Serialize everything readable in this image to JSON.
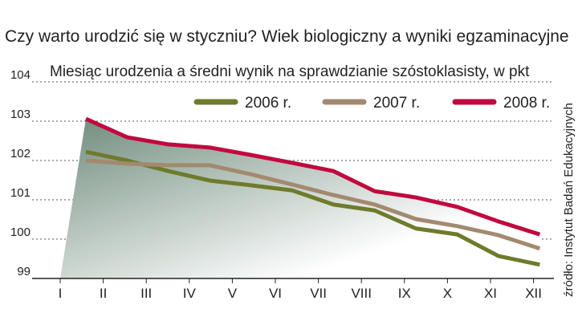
{
  "chart_data": {
    "type": "line",
    "title": "Czy warto urodzić się w styczniu? Wiek biologiczny a wyniki egzaminacyjne",
    "subtitle": "Miesiąc urodzenia a średni wynik na sprawdzianie szóstoklasisty, w pkt",
    "source": "źródło: Instytut Badań Edukacyjnych",
    "categories": [
      "I",
      "II",
      "III",
      "IV",
      "V",
      "VI",
      "VII",
      "VIII",
      "IX",
      "X",
      "XI",
      "XII"
    ],
    "series": [
      {
        "name": "2006 r.",
        "color": "#6e7b2b",
        "values": [
          102.22,
          102.0,
          101.73,
          101.49,
          101.37,
          101.24,
          100.88,
          100.73,
          100.27,
          100.12,
          99.57,
          99.35
        ]
      },
      {
        "name": "2007 r.",
        "color": "#a3896f",
        "values": [
          102.0,
          101.92,
          101.88,
          101.88,
          101.65,
          101.39,
          101.12,
          100.88,
          100.51,
          100.33,
          100.1,
          99.76
        ]
      },
      {
        "name": "2008 r.",
        "color": "#c1093f",
        "values": [
          103.06,
          102.59,
          102.41,
          102.33,
          102.14,
          101.94,
          101.73,
          101.22,
          101.06,
          100.82,
          100.45,
          100.12
        ]
      }
    ],
    "ylim": [
      99,
      104
    ],
    "yticks": [
      99,
      100,
      101,
      102,
      103,
      104
    ],
    "grid": true,
    "legend": "top-right"
  }
}
